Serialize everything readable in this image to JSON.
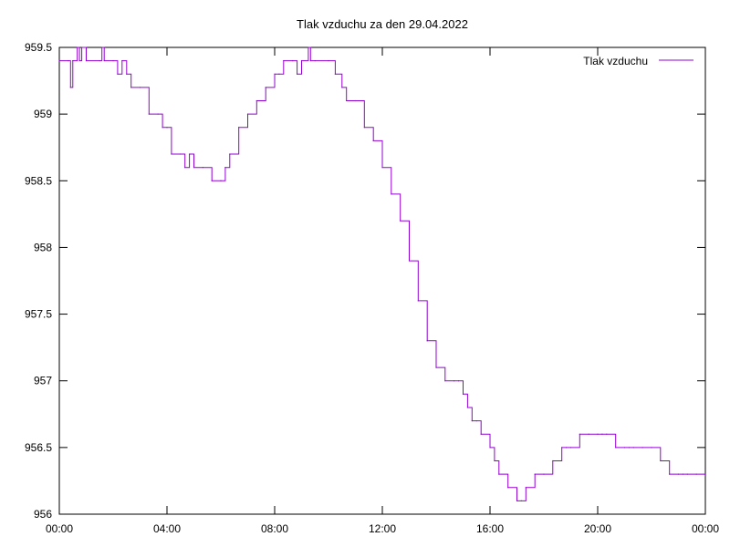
{
  "chart_data": {
    "type": "line",
    "title": "Tlak vzduchu za den 29.04.2022",
    "xlabel": "",
    "ylabel": "",
    "x_ticks": [
      "00:00",
      "04:00",
      "08:00",
      "12:00",
      "16:00",
      "20:00",
      "00:00"
    ],
    "y_ticks": [
      "956",
      "956.5",
      "957",
      "957.5",
      "958",
      "958.5",
      "959",
      "959.5"
    ],
    "xlim": [
      "00:00",
      "24:00"
    ],
    "ylim": [
      956,
      959.5
    ],
    "grid": false,
    "legend_position": "top-right",
    "series": [
      {
        "name": "Tlak vzduchu",
        "color": "#9400d3",
        "x": [
          "00:00",
          "00:20",
          "00:25",
          "00:30",
          "00:40",
          "00:45",
          "00:50",
          "01:00",
          "01:30",
          "01:35",
          "01:40",
          "02:00",
          "02:10",
          "02:20",
          "02:30",
          "02:40",
          "03:00",
          "03:20",
          "03:40",
          "03:50",
          "04:00",
          "04:10",
          "04:30",
          "04:40",
          "04:50",
          "05:00",
          "05:20",
          "05:40",
          "06:00",
          "06:10",
          "06:20",
          "06:40",
          "07:00",
          "07:20",
          "07:40",
          "08:00",
          "08:10",
          "08:20",
          "08:40",
          "08:50",
          "09:00",
          "09:15",
          "09:20",
          "09:30",
          "10:00",
          "10:15",
          "10:30",
          "10:40",
          "11:00",
          "11:20",
          "11:40",
          "12:00",
          "12:20",
          "12:40",
          "13:00",
          "13:20",
          "13:40",
          "14:00",
          "14:20",
          "14:40",
          "14:50",
          "15:00",
          "15:10",
          "15:20",
          "15:30",
          "15:40",
          "16:00",
          "16:10",
          "16:20",
          "16:40",
          "17:00",
          "17:10",
          "17:20",
          "17:40",
          "18:00",
          "18:20",
          "18:40",
          "18:50",
          "19:00",
          "19:20",
          "19:40",
          "20:00",
          "20:10",
          "20:20",
          "20:40",
          "21:00",
          "21:10",
          "21:20",
          "21:40",
          "22:00",
          "22:20",
          "22:40",
          "23:00",
          "23:10",
          "23:20",
          "23:40"
        ],
        "values": [
          959.4,
          959.4,
          959.2,
          959.4,
          959.5,
          959.4,
          959.5,
          959.4,
          959.4,
          959.5,
          959.4,
          959.4,
          959.3,
          959.4,
          959.3,
          959.2,
          959.2,
          959.0,
          959.0,
          958.9,
          958.9,
          958.7,
          958.7,
          958.6,
          958.7,
          958.6,
          958.6,
          958.5,
          958.5,
          958.6,
          958.7,
          958.9,
          959.0,
          959.1,
          959.2,
          959.3,
          959.3,
          959.4,
          959.4,
          959.3,
          959.4,
          959.5,
          959.4,
          959.4,
          959.4,
          959.3,
          959.2,
          959.1,
          959.1,
          958.9,
          958.8,
          958.6,
          958.4,
          958.2,
          957.9,
          957.6,
          957.3,
          957.1,
          957.0,
          957.0,
          957.0,
          956.9,
          956.8,
          956.7,
          956.7,
          956.6,
          956.5,
          956.4,
          956.3,
          956.2,
          956.1,
          956.1,
          956.2,
          956.3,
          956.3,
          956.4,
          956.5,
          956.5,
          956.5,
          956.6,
          956.6,
          956.6,
          956.6,
          956.6,
          956.5,
          956.5,
          956.5,
          956.5,
          956.5,
          956.5,
          956.4,
          956.3,
          956.3,
          956.3,
          956.3,
          956.3
        ]
      }
    ]
  }
}
